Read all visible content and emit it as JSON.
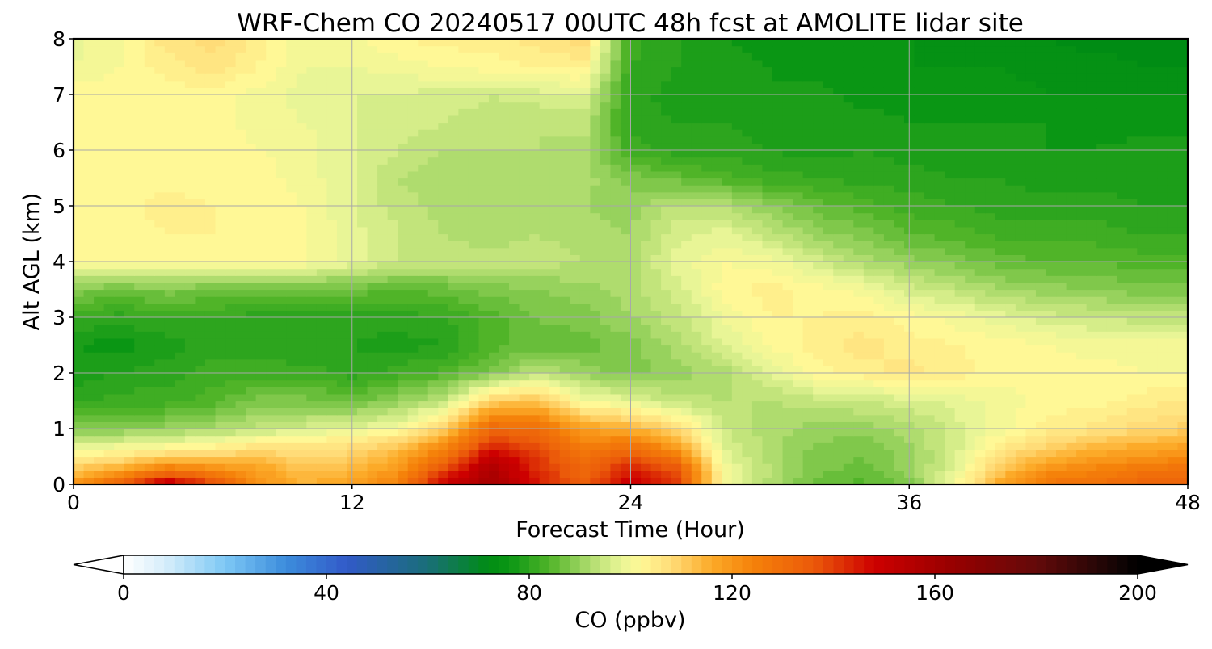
{
  "chart_data": {
    "type": "heatmap",
    "title": "WRF-Chem CO  20240517 00UTC 48h fcst at AMOLITE lidar site",
    "xlabel": "Forecast Time (Hour)",
    "ylabel": "Alt AGL (km)",
    "xlim": [
      0,
      48
    ],
    "ylim": [
      0,
      8
    ],
    "xticks": [
      0,
      12,
      24,
      36,
      48
    ],
    "yticks": [
      0,
      1,
      2,
      3,
      4,
      5,
      6,
      7,
      8
    ],
    "grid": true,
    "x": [
      0,
      2,
      4,
      6,
      8,
      10,
      12,
      14,
      16,
      18,
      20,
      22,
      24,
      26,
      28,
      30,
      32,
      34,
      36,
      38,
      40,
      42,
      44,
      46,
      48
    ],
    "y": [
      0,
      0.25,
      0.5,
      0.75,
      1,
      1.5,
      2,
      2.5,
      3,
      3.5,
      4,
      4.5,
      5,
      5.5,
      6,
      6.5,
      7,
      7.5,
      8
    ],
    "z": [
      [
        120,
        135,
        155,
        140,
        120,
        115,
        118,
        125,
        150,
        160,
        145,
        135,
        150,
        140,
        100,
        92,
        86,
        84,
        88,
        100,
        118,
        128,
        130,
        132,
        132
      ],
      [
        112,
        118,
        128,
        124,
        118,
        112,
        114,
        120,
        140,
        158,
        142,
        132,
        145,
        138,
        100,
        93,
        88,
        86,
        90,
        98,
        112,
        122,
        124,
        128,
        130
      ],
      [
        103,
        106,
        110,
        110,
        112,
        108,
        110,
        116,
        128,
        152,
        140,
        130,
        136,
        126,
        98,
        92,
        88,
        87,
        90,
        96,
        108,
        114,
        118,
        120,
        122
      ],
      [
        96,
        97,
        98,
        100,
        104,
        104,
        106,
        110,
        120,
        140,
        136,
        124,
        126,
        116,
        96,
        92,
        89,
        88,
        91,
        96,
        104,
        108,
        112,
        114,
        116
      ],
      [
        88,
        89,
        90,
        92,
        94,
        96,
        98,
        100,
        110,
        132,
        130,
        118,
        115,
        108,
        95,
        92,
        90,
        90,
        92,
        96,
        100,
        104,
        106,
        108,
        110
      ],
      [
        80,
        82,
        82,
        84,
        88,
        88,
        86,
        90,
        94,
        110,
        112,
        100,
        98,
        94,
        93,
        93,
        94,
        95,
        96,
        98,
        100,
        102,
        102,
        104,
        105
      ],
      [
        78,
        79,
        80,
        82,
        82,
        82,
        80,
        82,
        84,
        88,
        94,
        90,
        88,
        90,
        92,
        97,
        102,
        104,
        106,
        104,
        102,
        102,
        102,
        101,
        101
      ],
      [
        77,
        76,
        78,
        80,
        80,
        79,
        79,
        78,
        79,
        84,
        86,
        86,
        88,
        92,
        97,
        101,
        104,
        106,
        104,
        103,
        102,
        101,
        100,
        100,
        100
      ],
      [
        81,
        80,
        81,
        81,
        80,
        80,
        80,
        80,
        81,
        84,
        87,
        88,
        91,
        94,
        99,
        103,
        103,
        104,
        102,
        100,
        98,
        96,
        95,
        94,
        94
      ],
      [
        88,
        87,
        88,
        87,
        86,
        86,
        86,
        85,
        86,
        88,
        89,
        90,
        92,
        96,
        102,
        104,
        102,
        100,
        96,
        94,
        91,
        90,
        89,
        88,
        88
      ],
      [
        101,
        101,
        101,
        101,
        101,
        101,
        98,
        95,
        94,
        94,
        94,
        93,
        92,
        98,
        101,
        100,
        96,
        92,
        90,
        88,
        86,
        85,
        85,
        84,
        84
      ],
      [
        102,
        102,
        103,
        103,
        102,
        101,
        98,
        95,
        93,
        92,
        93,
        92,
        91,
        96,
        98,
        94,
        90,
        88,
        85,
        84,
        82,
        82,
        82,
        81,
        81
      ],
      [
        102,
        102,
        104,
        103,
        102,
        101,
        97,
        94,
        92,
        92,
        91,
        91,
        90,
        94,
        93,
        89,
        86,
        84,
        82,
        81,
        80,
        80,
        80,
        79,
        79
      ],
      [
        102,
        102,
        102,
        102,
        102,
        100,
        97,
        93,
        91,
        91,
        92,
        92,
        88,
        86,
        84,
        82,
        81,
        80,
        80,
        79,
        79,
        78,
        78,
        78,
        78
      ],
      [
        102,
        102,
        102,
        102,
        101,
        100,
        97,
        95,
        93,
        93,
        93,
        92,
        82,
        80,
        80,
        79,
        78,
        79,
        78,
        78,
        78,
        77,
        77,
        78,
        78
      ],
      [
        102,
        101,
        102,
        102,
        100,
        99,
        97,
        96,
        95,
        94,
        93,
        94,
        80,
        79,
        79,
        78,
        77,
        78,
        77,
        77,
        77,
        77,
        76,
        76,
        76
      ],
      [
        103,
        102,
        102,
        102,
        100,
        98,
        97,
        97,
        96,
        95,
        96,
        97,
        80,
        78,
        77,
        77,
        78,
        76,
        76,
        76,
        76,
        75,
        75,
        75,
        75
      ],
      [
        99,
        101,
        104,
        106,
        103,
        99,
        99,
        100,
        101,
        102,
        103,
        104,
        81,
        79,
        78,
        77,
        76,
        75,
        75,
        75,
        75,
        74,
        74,
        73,
        73
      ],
      [
        98,
        101,
        106,
        108,
        104,
        99,
        100,
        103,
        104,
        104,
        106,
        108,
        82,
        79,
        77,
        76,
        76,
        75,
        75,
        74,
        74,
        73,
        72,
        72,
        72
      ]
    ],
    "colorbar": {
      "label": "CO  (ppbv)",
      "ticks": [
        0,
        40,
        80,
        120,
        160,
        200
      ],
      "min": 0,
      "max": 200,
      "extend": "both"
    }
  }
}
